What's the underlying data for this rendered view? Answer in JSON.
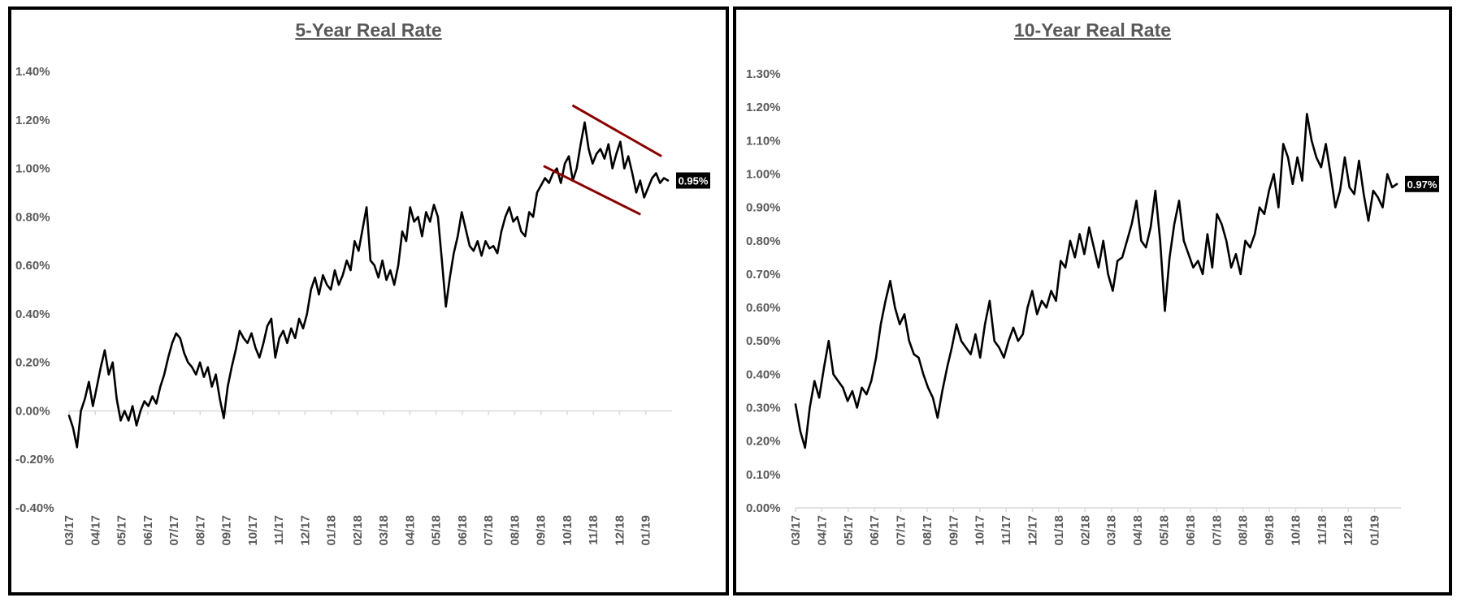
{
  "chart_data": [
    {
      "type": "line",
      "title": "5-Year Real Rate",
      "xlabel": "",
      "ylabel": "",
      "ylim": [
        -0.4,
        1.4
      ],
      "yticks": [
        "1.40%",
        "1.20%",
        "1.00%",
        "0.80%",
        "0.60%",
        "0.40%",
        "0.20%",
        "0.00%",
        "-0.20%",
        "-0.40%"
      ],
      "ytick_values": [
        1.4,
        1.2,
        1.0,
        0.8,
        0.6,
        0.4,
        0.2,
        0.0,
        -0.2,
        -0.4
      ],
      "xticks": [
        "03/17",
        "04/17",
        "05/17",
        "06/17",
        "07/17",
        "08/17",
        "09/17",
        "10/17",
        "11/17",
        "12/17",
        "01/18",
        "02/18",
        "03/18",
        "04/18",
        "05/18",
        "06/18",
        "07/18",
        "08/18",
        "09/18",
        "10/18",
        "11/18",
        "12/18",
        "01/19"
      ],
      "grid": false,
      "end_label": "0.95%",
      "line_color": "#000000",
      "trend_color": "#8B0000",
      "series": [
        {
          "values": [
            -0.02,
            -0.07,
            -0.15,
            0.0,
            0.05,
            0.12,
            0.02,
            0.1,
            0.18,
            0.25,
            0.15,
            0.2,
            0.05,
            -0.04,
            0.0,
            -0.04,
            0.02,
            -0.06,
            0.0,
            0.04,
            0.02,
            0.06,
            0.03,
            0.1,
            0.15,
            0.22,
            0.28,
            0.32,
            0.3,
            0.24,
            0.2,
            0.18,
            0.15,
            0.2,
            0.14,
            0.18,
            0.1,
            0.15,
            0.05,
            -0.03,
            0.1,
            0.18,
            0.25,
            0.33,
            0.3,
            0.28,
            0.32,
            0.26,
            0.22,
            0.28,
            0.35,
            0.38,
            0.22,
            0.3,
            0.33,
            0.28,
            0.34,
            0.3,
            0.38,
            0.34,
            0.4,
            0.5,
            0.55,
            0.48,
            0.56,
            0.52,
            0.5,
            0.58,
            0.52,
            0.56,
            0.62,
            0.58,
            0.7,
            0.66,
            0.75,
            0.84,
            0.62,
            0.6,
            0.55,
            0.62,
            0.54,
            0.58,
            0.52,
            0.6,
            0.74,
            0.7,
            0.84,
            0.78,
            0.8,
            0.72,
            0.82,
            0.78,
            0.85,
            0.8,
            0.62,
            0.43,
            0.55,
            0.65,
            0.72,
            0.82,
            0.75,
            0.68,
            0.66,
            0.7,
            0.64,
            0.7,
            0.67,
            0.68,
            0.65,
            0.74,
            0.8,
            0.84,
            0.78,
            0.8,
            0.74,
            0.72,
            0.82,
            0.8,
            0.9,
            0.93,
            0.96,
            0.94,
            0.98,
            1.0,
            0.94,
            1.02,
            1.05,
            0.95,
            1.0,
            1.1,
            1.19,
            1.08,
            1.02,
            1.06,
            1.08,
            1.04,
            1.1,
            1.0,
            1.06,
            1.11,
            1.0,
            1.05,
            0.98,
            0.9,
            0.95,
            0.88,
            0.92,
            0.96,
            0.98,
            0.94,
            0.96,
            0.95
          ]
        }
      ],
      "trend_lines": [
        {
          "x0": 19.2,
          "y0": 1.26,
          "x1": 22.6,
          "y1": 1.05
        },
        {
          "x0": 18.1,
          "y0": 1.01,
          "x1": 21.8,
          "y1": 0.81
        }
      ]
    },
    {
      "type": "line",
      "title": "10-Year Real Rate",
      "xlabel": "",
      "ylabel": "",
      "ylim": [
        0.0,
        1.3
      ],
      "yticks": [
        "1.30%",
        "1.20%",
        "1.10%",
        "1.00%",
        "0.90%",
        "0.80%",
        "0.70%",
        "0.60%",
        "0.50%",
        "0.40%",
        "0.30%",
        "0.20%",
        "0.10%",
        "0.00%"
      ],
      "ytick_values": [
        1.3,
        1.2,
        1.1,
        1.0,
        0.9,
        0.8,
        0.7,
        0.6,
        0.5,
        0.4,
        0.3,
        0.2,
        0.1,
        0.0
      ],
      "xticks": [
        "03/17",
        "04/17",
        "05/17",
        "06/17",
        "07/17",
        "08/17",
        "09/17",
        "10/17",
        "11/17",
        "12/17",
        "01/18",
        "02/18",
        "03/18",
        "04/18",
        "05/18",
        "06/18",
        "07/18",
        "08/18",
        "09/18",
        "10/18",
        "11/18",
        "12/18",
        "01/19"
      ],
      "grid": false,
      "end_label": "0.97%",
      "line_color": "#000000",
      "series": [
        {
          "values": [
            0.31,
            0.23,
            0.18,
            0.3,
            0.38,
            0.33,
            0.42,
            0.5,
            0.4,
            0.38,
            0.36,
            0.32,
            0.35,
            0.3,
            0.36,
            0.34,
            0.38,
            0.45,
            0.55,
            0.62,
            0.68,
            0.6,
            0.55,
            0.58,
            0.5,
            0.46,
            0.45,
            0.4,
            0.36,
            0.33,
            0.27,
            0.35,
            0.42,
            0.48,
            0.55,
            0.5,
            0.48,
            0.46,
            0.52,
            0.45,
            0.55,
            0.62,
            0.5,
            0.48,
            0.45,
            0.5,
            0.54,
            0.5,
            0.52,
            0.6,
            0.65,
            0.58,
            0.62,
            0.6,
            0.65,
            0.62,
            0.74,
            0.72,
            0.8,
            0.75,
            0.82,
            0.76,
            0.84,
            0.78,
            0.72,
            0.8,
            0.7,
            0.65,
            0.74,
            0.75,
            0.8,
            0.85,
            0.92,
            0.8,
            0.78,
            0.84,
            0.95,
            0.8,
            0.59,
            0.75,
            0.85,
            0.92,
            0.8,
            0.76,
            0.72,
            0.74,
            0.7,
            0.82,
            0.72,
            0.88,
            0.85,
            0.8,
            0.72,
            0.76,
            0.7,
            0.8,
            0.78,
            0.82,
            0.9,
            0.88,
            0.95,
            1.0,
            0.9,
            1.09,
            1.05,
            0.97,
            1.05,
            0.98,
            1.18,
            1.1,
            1.05,
            1.02,
            1.09,
            1.0,
            0.9,
            0.95,
            1.05,
            0.96,
            0.94,
            1.04,
            0.94,
            0.86,
            0.95,
            0.93,
            0.9,
            1.0,
            0.96,
            0.97
          ]
        }
      ]
    }
  ]
}
